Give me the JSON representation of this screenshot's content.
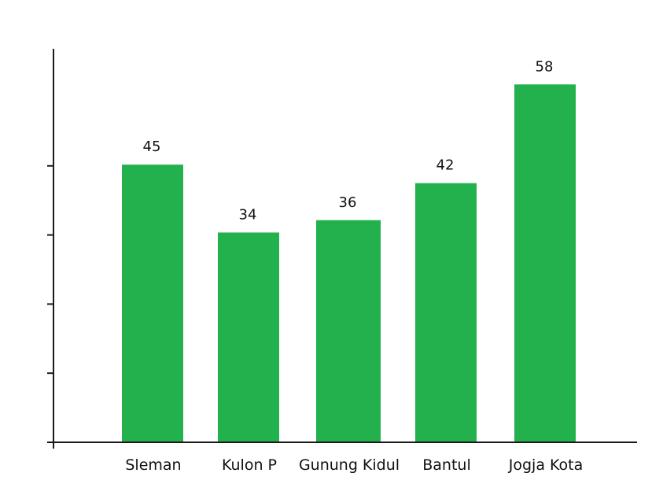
{
  "chart_data": {
    "type": "bar",
    "categories": [
      "Sleman",
      "Kulon P",
      "Gunung Kidul",
      "Bantul",
      "Jogja Kota"
    ],
    "values": [
      45,
      34,
      36,
      42,
      58
    ],
    "data_labels": [
      "45",
      "34",
      "36",
      "42",
      "58"
    ],
    "title": "",
    "xlabel": "",
    "ylabel": "",
    "ylim": [
      0,
      60
    ],
    "y_ticks": [
      0,
      11.2,
      22.4,
      33.6,
      44.8
    ],
    "y_tick_labels_shown": false,
    "grid": false,
    "legend": "none",
    "bar_color": "#23b14d",
    "axis_color": "#1a1a1a"
  }
}
